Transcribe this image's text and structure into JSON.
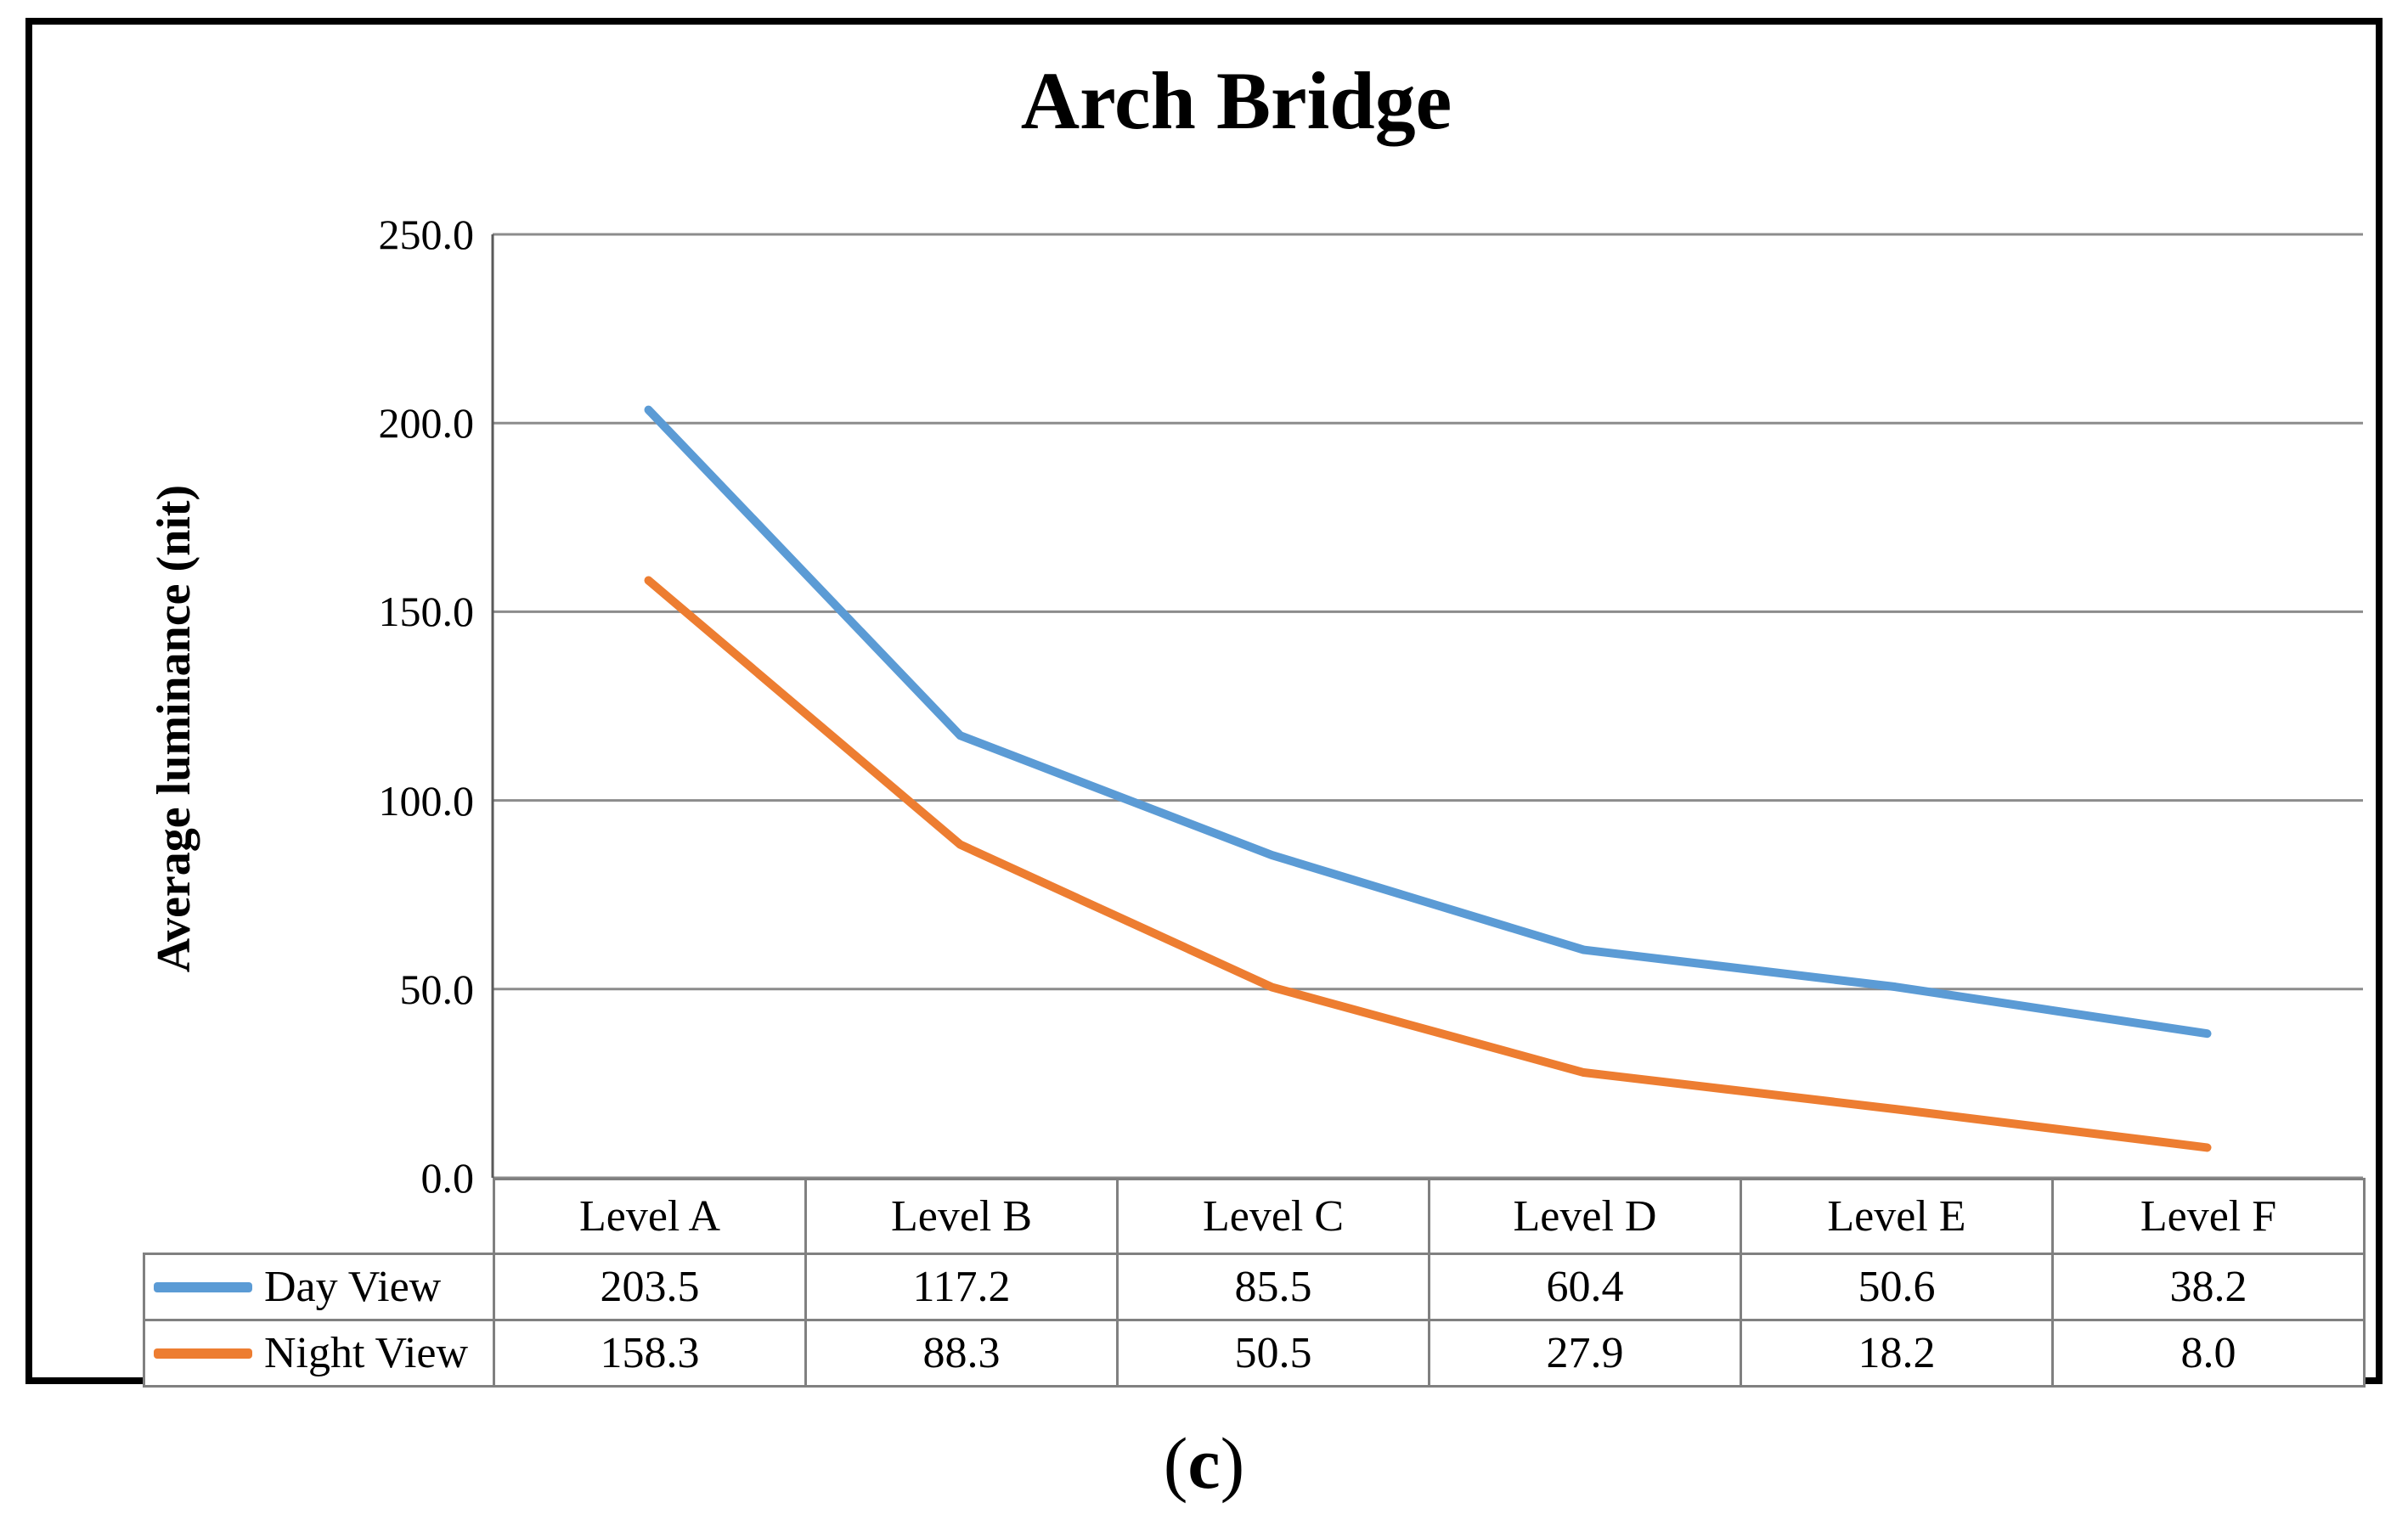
{
  "figure": {
    "title": "Arch Bridge",
    "caption": {
      "open": "(",
      "letter": "c",
      "close": ")"
    }
  },
  "chart_data": {
    "type": "line",
    "title": "Arch Bridge",
    "xlabel": "",
    "ylabel": "Average luminance (nit)",
    "categories": [
      "Level A",
      "Level B",
      "Level C",
      "Level D",
      "Level E",
      "Level F"
    ],
    "series": [
      {
        "name": "Day View",
        "color": "#5B9BD5",
        "values": [
          203.5,
          117.2,
          85.5,
          60.4,
          50.6,
          38.2
        ]
      },
      {
        "name": "Night View",
        "color": "#ED7D31",
        "values": [
          158.3,
          88.3,
          50.5,
          27.9,
          18.2,
          8.0
        ]
      }
    ],
    "ylim": [
      0,
      250
    ],
    "y_ticks": [
      "250.0",
      "200.0",
      "150.0",
      "100.0",
      "50.0",
      "0.0"
    ],
    "grid": true,
    "gridline_color": "#8C8C8C",
    "axis_color": "#595959",
    "legend_position": "table-left"
  },
  "table": {
    "rows": [
      {
        "cells": [
          "203.5",
          "117.2",
          "85.5",
          "60.4",
          "50.6",
          "38.2"
        ]
      },
      {
        "cells": [
          "158.3",
          "88.3",
          "50.5",
          "27.9",
          "18.2",
          "8.0"
        ]
      }
    ]
  }
}
